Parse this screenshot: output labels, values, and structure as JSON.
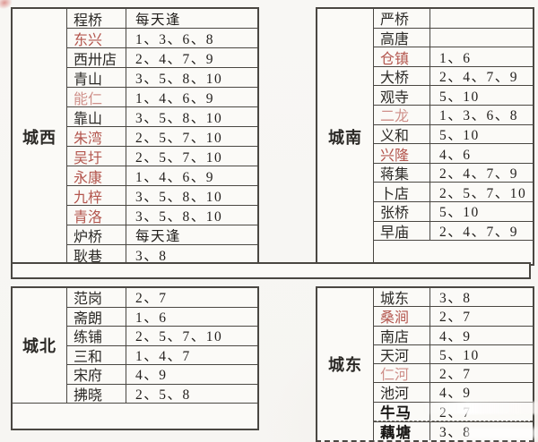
{
  "document": {
    "description_label": "market-day schedule table",
    "background_color": "#f7f6f3",
    "border_color": "#4a4742",
    "text_color": "#2b2926",
    "red_name_color": "#b3554d",
    "red_faded_name_color": "#cf908a",
    "everyday_text": "每天逢"
  },
  "sections": [
    {
      "id": "chengxi",
      "label": "城西",
      "trailing_empty_row": false,
      "merged_empty_row": false,
      "rows": [
        {
          "name": "程桥",
          "days": "每天逢",
          "style": "black"
        },
        {
          "name": "东兴",
          "days": "1、3、6、8",
          "style": "red"
        },
        {
          "name": "西卅店",
          "days": "2、4、7、9",
          "style": "black"
        },
        {
          "name": "青山",
          "days": "3、5、8、10",
          "style": "black"
        },
        {
          "name": "能仁",
          "days": "1、4、6、9",
          "style": "red-faded"
        },
        {
          "name": "靠山",
          "days": "3、5、8、10",
          "style": "black"
        },
        {
          "name": "朱湾",
          "days": "2、5、7、10",
          "style": "red"
        },
        {
          "name": "吴圩",
          "days": "2、5、7、10",
          "style": "red"
        },
        {
          "name": "永康",
          "days": "1、4、6、9",
          "style": "red"
        },
        {
          "name": "九梓",
          "days": "3、5、8、10",
          "style": "red"
        },
        {
          "name": "青洛",
          "days": "3、5、8、10",
          "style": "red"
        },
        {
          "name": "炉桥",
          "days": "每天逢",
          "style": "black"
        },
        {
          "name": "耿巷",
          "days": "3、8",
          "style": "black"
        }
      ]
    },
    {
      "id": "chengnan",
      "label": "城南",
      "trailing_empty_row": true,
      "merged_empty_row": false,
      "rows": [
        {
          "name": "严桥",
          "days": "",
          "style": "black"
        },
        {
          "name": "高唐",
          "days": "",
          "style": "black"
        },
        {
          "name": "仓镇",
          "days": "1、6",
          "style": "red"
        },
        {
          "name": "大桥",
          "days": "2、4、7、9",
          "style": "black"
        },
        {
          "name": "观寺",
          "days": "5、10",
          "style": "black"
        },
        {
          "name": "二龙",
          "days": "1、3、6、8",
          "style": "red-faded"
        },
        {
          "name": "义和",
          "days": "5、10",
          "style": "black"
        },
        {
          "name": "兴隆",
          "days": "4、6",
          "style": "red"
        },
        {
          "name": "蒋集",
          "days": "2、4、7、9",
          "style": "black"
        },
        {
          "name": "卜店",
          "days": "2、5、7、10",
          "style": "black"
        },
        {
          "name": "张桥",
          "days": "5、10",
          "style": "black"
        },
        {
          "name": "早庙",
          "days": "2、4、7、9",
          "style": "black"
        }
      ]
    },
    {
      "id": "chengbei",
      "label": "城北",
      "trailing_empty_row": false,
      "merged_empty_row": true,
      "rows": [
        {
          "name": "范岗",
          "days": "2、7",
          "style": "black"
        },
        {
          "name": "斋朗",
          "days": "1、6",
          "style": "black"
        },
        {
          "name": "练铺",
          "days": "2、5、7、10",
          "style": "black"
        },
        {
          "name": "三和",
          "days": "1、4、7",
          "style": "black"
        },
        {
          "name": "宋府",
          "days": "4、9",
          "style": "black"
        },
        {
          "name": "拂晓",
          "days": "2、5、8",
          "style": "black"
        }
      ]
    },
    {
      "id": "chengdong",
      "label": "城东",
      "trailing_empty_row": false,
      "merged_empty_row": false,
      "rows": [
        {
          "name": "城东",
          "days": "3、8",
          "style": "black"
        },
        {
          "name": "桑涧",
          "days": "2、7",
          "style": "red"
        },
        {
          "name": "南店",
          "days": "4、9",
          "style": "black"
        },
        {
          "name": "天河",
          "days": "5、10",
          "style": "black"
        },
        {
          "name": "仁河",
          "days": "2、7",
          "style": "red-faded"
        },
        {
          "name": "池河",
          "days": "4、9",
          "style": "black"
        },
        {
          "name": "牛马",
          "days": "2、7",
          "style": "bold-black",
          "dashed": true
        },
        {
          "name": "藕塘",
          "days": "3、8",
          "style": "bold-black"
        }
      ]
    }
  ]
}
